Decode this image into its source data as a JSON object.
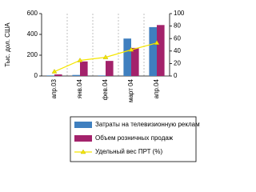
{
  "chart_data": {
    "type": "bar-line",
    "y_label": "Тыс. дол. США",
    "categories": [
      "апр.03",
      "янв.04",
      "фев.04",
      "март 04",
      "апр.04"
    ],
    "series": [
      {
        "name": "Затраты на телевизионную рекламу",
        "color": "#3f7fbf",
        "type": "bar",
        "values": [
          5,
          10,
          5,
          360,
          470
        ]
      },
      {
        "name": "Объем розничных продаж",
        "color": "#a3226b",
        "type": "bar",
        "values": [
          15,
          140,
          145,
          270,
          490
        ]
      },
      {
        "name": "Удельный вес ПРТ (%)",
        "color": "#f5e600",
        "type": "line",
        "axis": "y2",
        "values": [
          7,
          25,
          30,
          42,
          53
        ]
      }
    ],
    "ylim": [
      0,
      600
    ],
    "yticks": [
      0,
      200,
      400,
      600
    ],
    "y2lim": [
      0,
      100
    ],
    "y2ticks": [
      0,
      20,
      40,
      60,
      80,
      100
    ]
  }
}
